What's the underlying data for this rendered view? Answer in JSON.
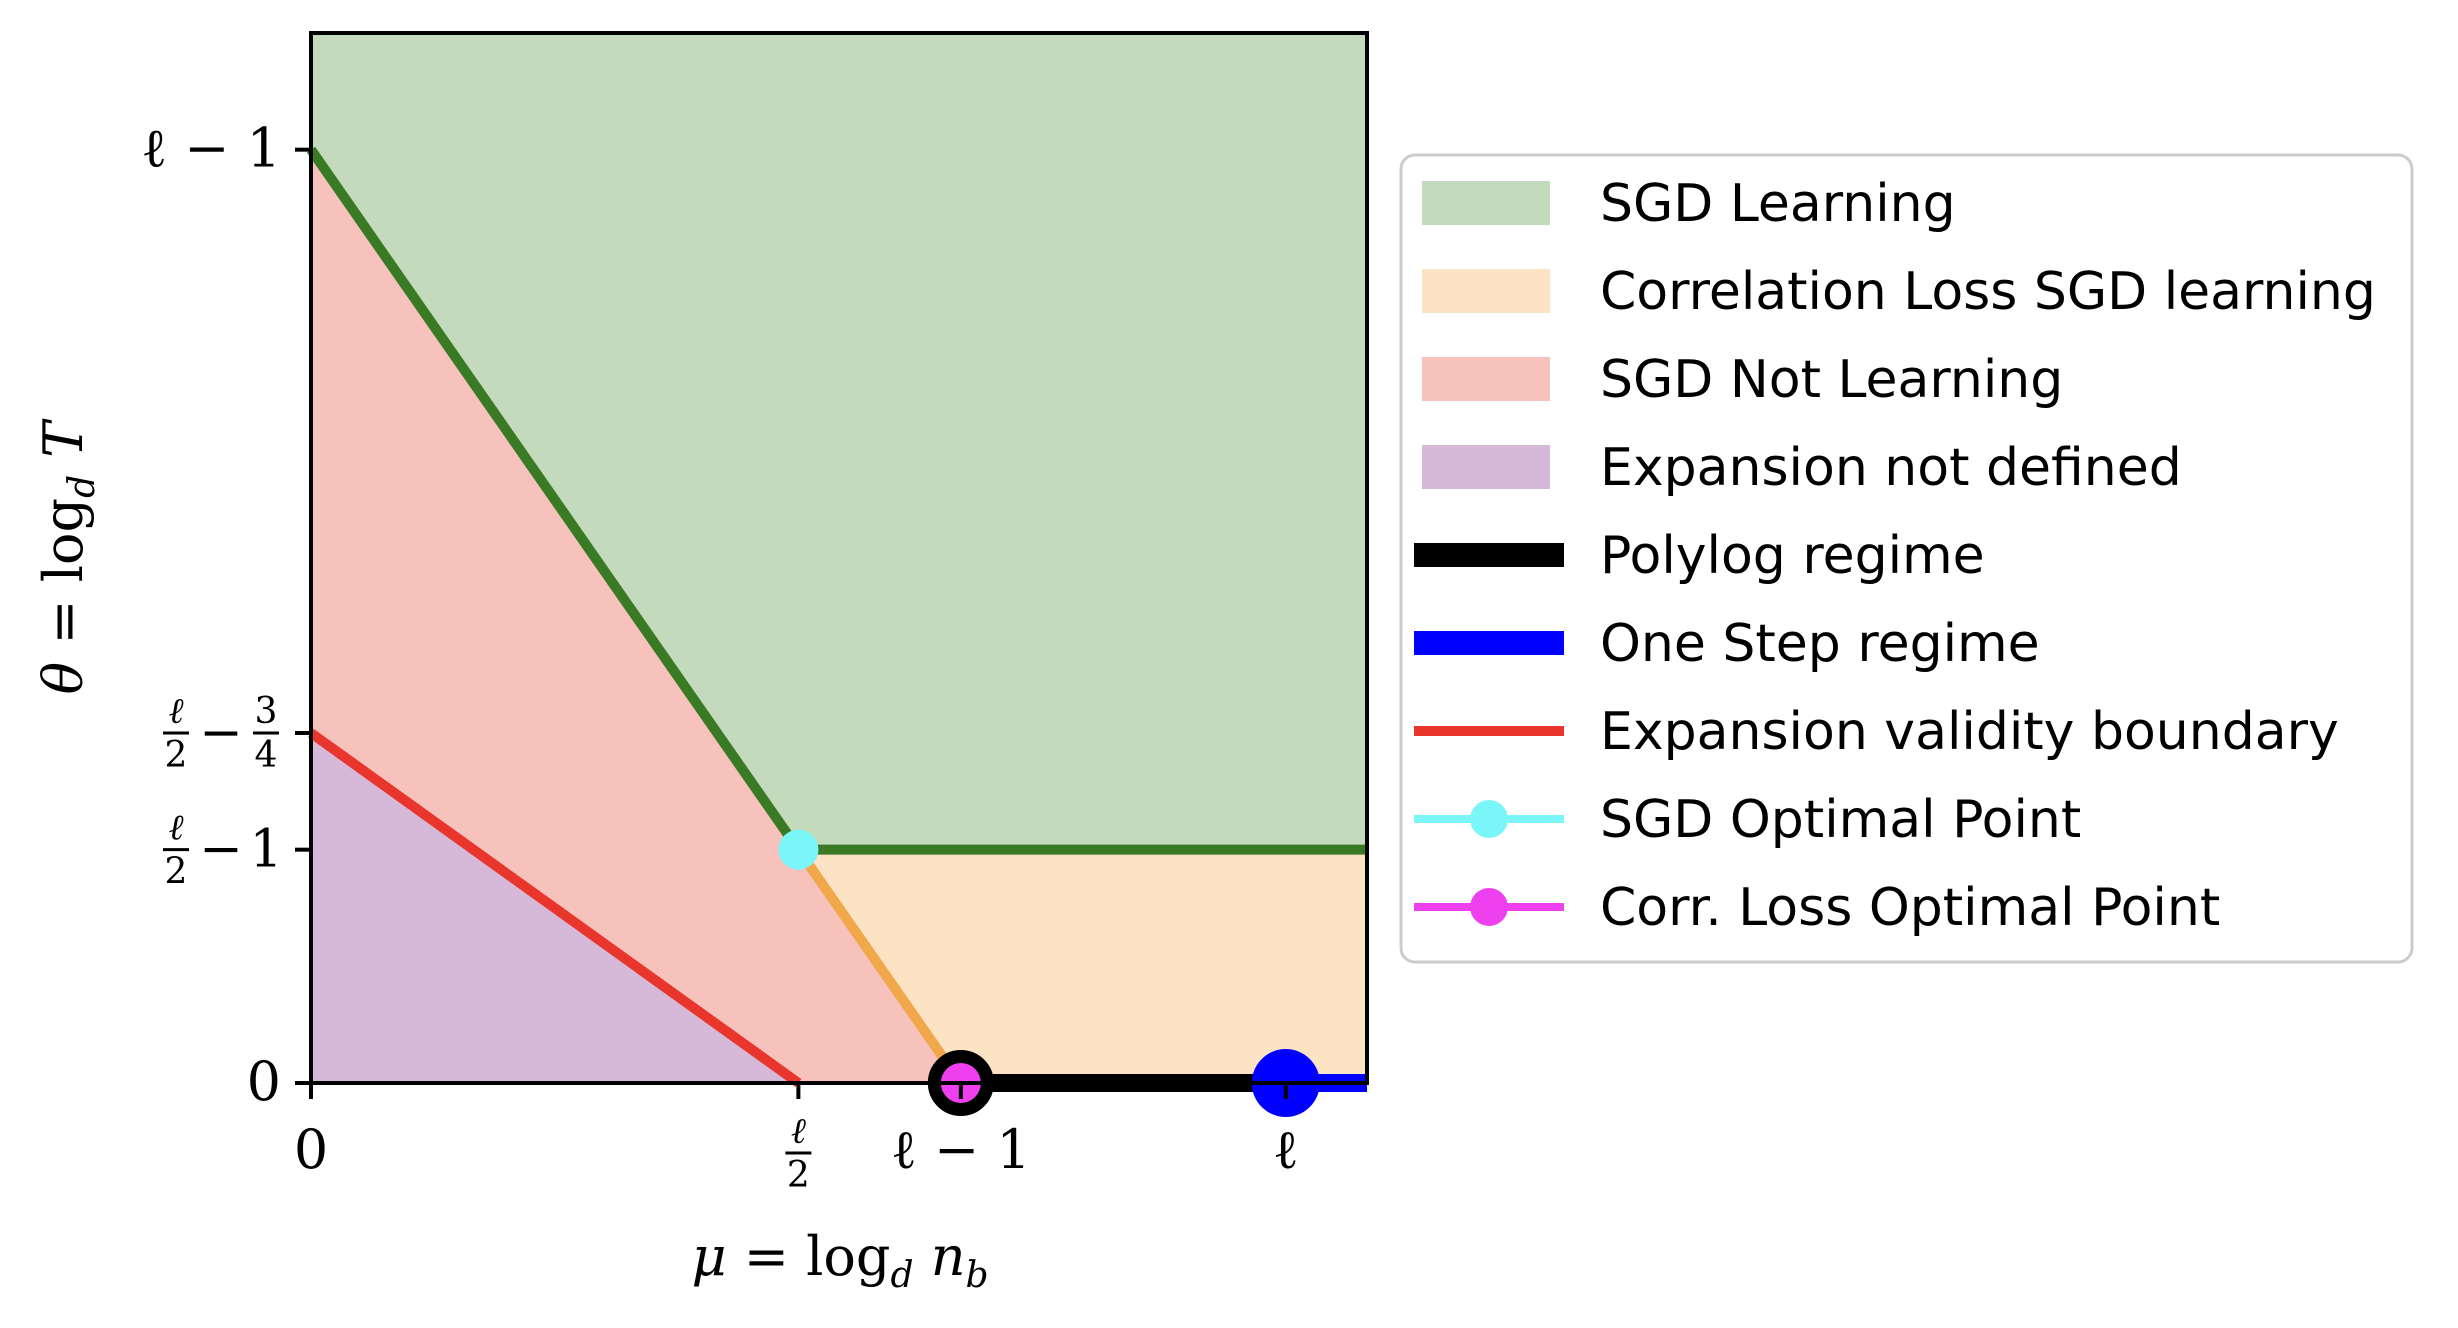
{
  "chart_data": {
    "type": "area",
    "xlabel": "μ = log_d n_b",
    "ylabel": "θ = log_d T",
    "x_ticks": [
      {
        "value": 0,
        "label": "0"
      },
      {
        "value": 1.5,
        "label": "ℓ/2"
      },
      {
        "value": 2,
        "label": "ℓ − 1"
      },
      {
        "value": 3,
        "label": "ℓ"
      }
    ],
    "y_ticks": [
      {
        "value": 0,
        "label": "0"
      },
      {
        "value": 0.5,
        "label": "ℓ/2 − 1"
      },
      {
        "value": 0.75,
        "label": "ℓ/2 − 3/4"
      },
      {
        "value": 2,
        "label": "ℓ − 1"
      }
    ],
    "xlim": [
      0,
      3.25
    ],
    "ylim": [
      0,
      2.25
    ],
    "regions": [
      {
        "name": "SGD Learning",
        "color": "#c4dabd",
        "points": [
          [
            0,
            2
          ],
          [
            1.5,
            0.5
          ],
          [
            3.25,
            0.5
          ],
          [
            3.25,
            2.25
          ],
          [
            0,
            2.25
          ]
        ]
      },
      {
        "name": "Correlation Loss SGD learning",
        "color": "#fbe3c4",
        "points": [
          [
            1.5,
            0.5
          ],
          [
            2,
            0
          ],
          [
            3.25,
            0
          ],
          [
            3.25,
            0.5
          ]
        ]
      },
      {
        "name": "SGD Not Learning",
        "color": "#f7c1bc",
        "points": [
          [
            0,
            2
          ],
          [
            0,
            0.75
          ],
          [
            1.5,
            0
          ],
          [
            2,
            0
          ],
          [
            1.5,
            0.5
          ]
        ]
      },
      {
        "name": "Expansion not defined",
        "color": "#d6b9d9",
        "points": [
          [
            0,
            0
          ],
          [
            0,
            0.75
          ],
          [
            1.5,
            0
          ]
        ]
      }
    ],
    "lines": [
      {
        "name": "SGD boundary",
        "color": "#3a7a25",
        "points": [
          [
            0,
            2
          ],
          [
            1.5,
            0.5
          ],
          [
            3.25,
            0.5
          ]
        ],
        "width": 10
      },
      {
        "name": "Correlation loss boundary",
        "color": "#f0a84a",
        "points": [
          [
            1.5,
            0.5
          ],
          [
            2,
            0
          ]
        ],
        "width": 10
      },
      {
        "name": "Expansion validity boundary",
        "color": "#e8362c",
        "points": [
          [
            0,
            0.75
          ],
          [
            1.5,
            0
          ]
        ],
        "width": 10
      },
      {
        "name": "Polylog regime",
        "color": "#000000",
        "points": [
          [
            2,
            0
          ],
          [
            3,
            0
          ]
        ],
        "width": 18
      },
      {
        "name": "One Step regime",
        "color": "#0000ff",
        "points": [
          [
            3,
            0
          ],
          [
            3.25,
            0
          ]
        ],
        "width": 18
      }
    ],
    "points": [
      {
        "name": "SGD Optimal Point",
        "color": "#7af6f8",
        "x": 1.5,
        "y": 0.5
      },
      {
        "name": "Corr. Loss Optimal Point",
        "color": "#ee40ee",
        "x": 2,
        "y": 0
      }
    ],
    "regime_markers": [
      {
        "name": "polylog-marker",
        "color": "#000000",
        "x": 2,
        "y": 0,
        "style": "ring"
      },
      {
        "name": "one-step-marker",
        "color": "#0000ff",
        "x": 3,
        "y": 0,
        "style": "filled"
      }
    ],
    "legend": {
      "placement": "outside-right",
      "entries": [
        {
          "label": "SGD Learning",
          "kind": "patch",
          "color": "#c4dabd"
        },
        {
          "label": "Correlation Loss SGD learning",
          "kind": "patch",
          "color": "#fbe3c4"
        },
        {
          "label": "SGD Not Learning",
          "kind": "patch",
          "color": "#f7c1bc"
        },
        {
          "label": "Expansion not defined",
          "kind": "patch",
          "color": "#d6b9d9"
        },
        {
          "label": "Polylog regime",
          "kind": "thick-line",
          "color": "#000000"
        },
        {
          "label": "One Step regime",
          "kind": "thick-line",
          "color": "#0000ff"
        },
        {
          "label": "Expansion validity boundary",
          "kind": "line",
          "color": "#e8362c"
        },
        {
          "label": "SGD Optimal Point",
          "kind": "line-marker",
          "color": "#7af6f8"
        },
        {
          "label": "Corr. Loss Optimal Point",
          "kind": "line-marker",
          "color": "#ee40ee"
        }
      ]
    }
  }
}
